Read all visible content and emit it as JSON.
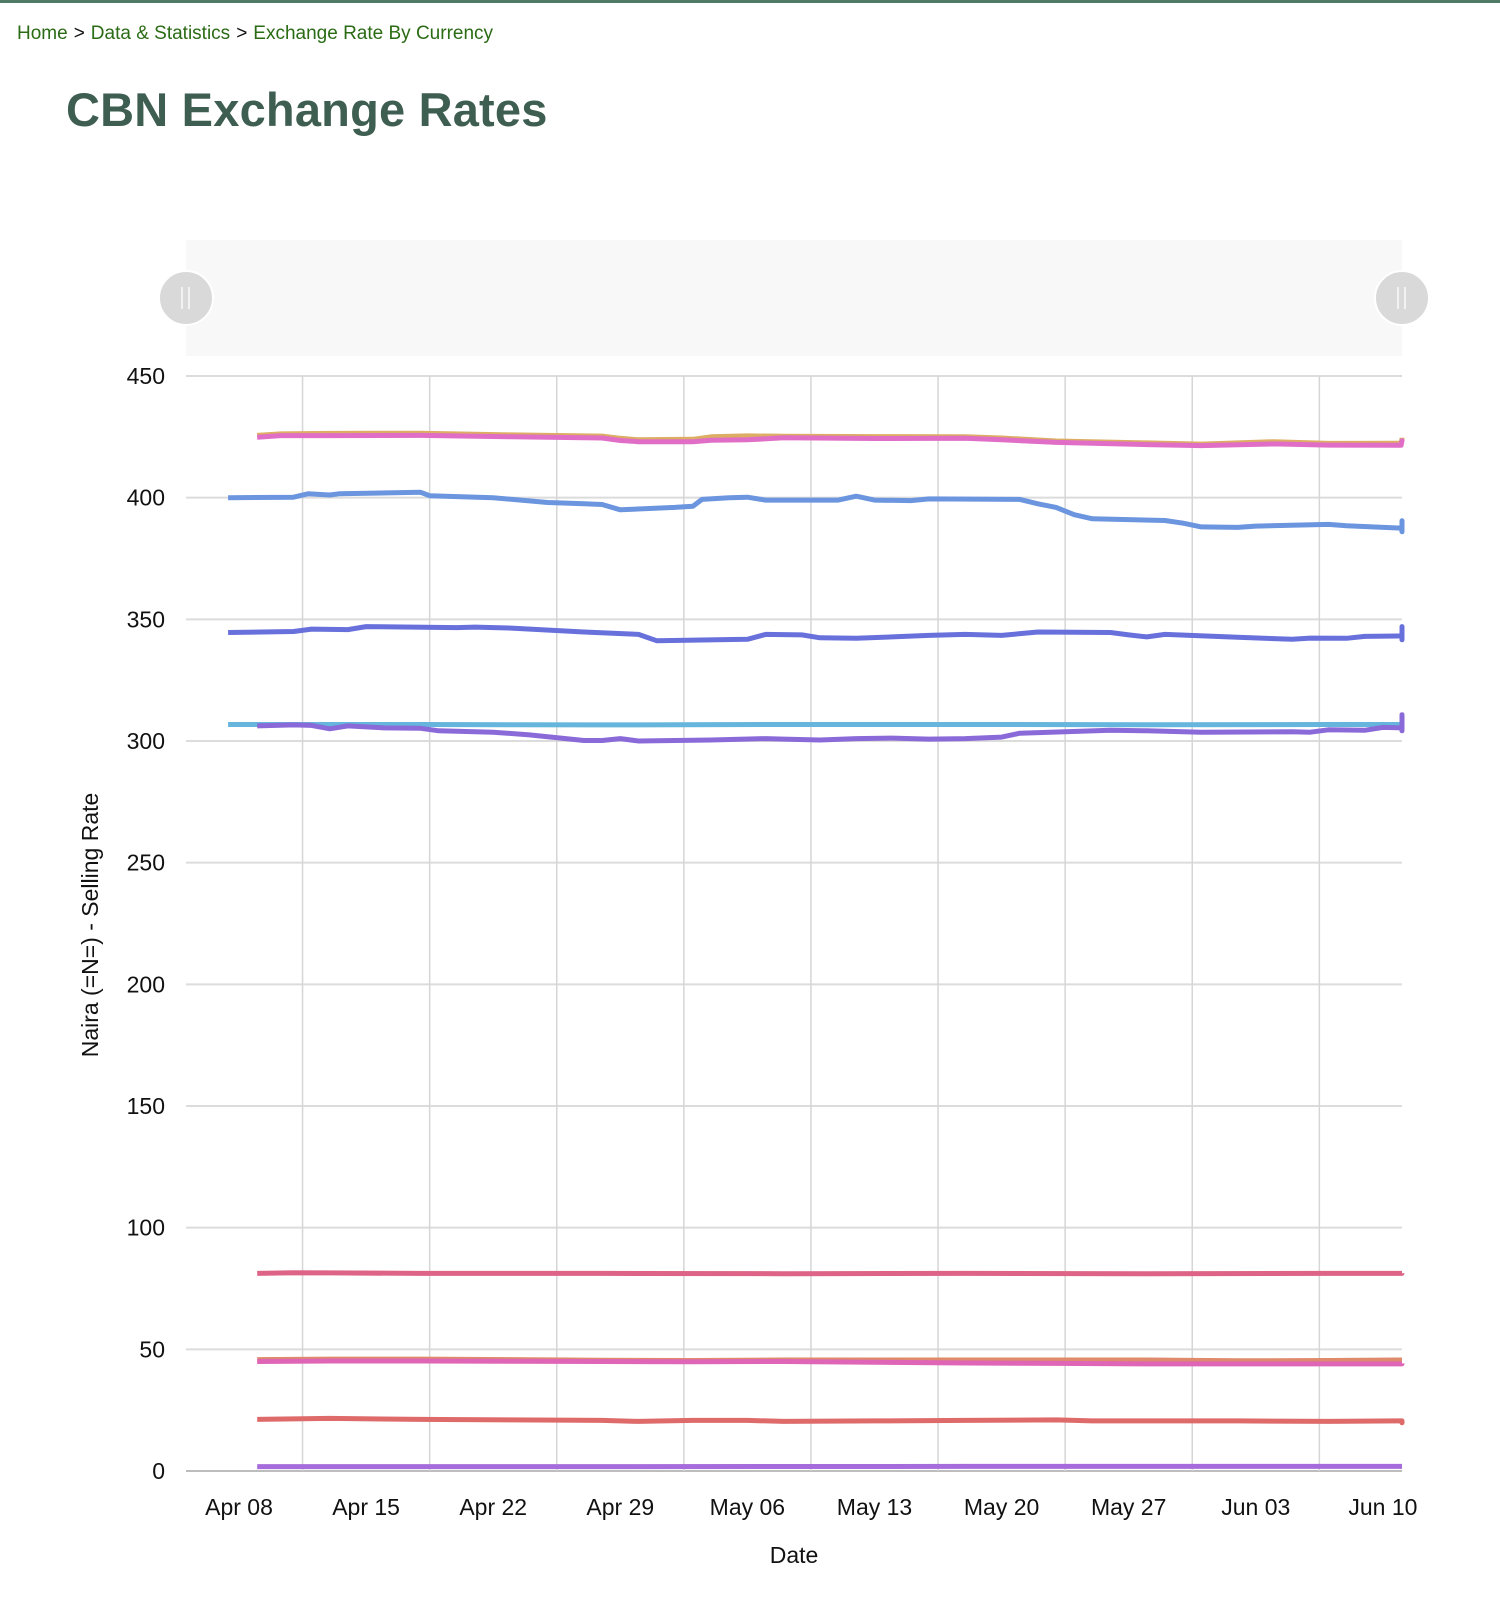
{
  "breadcrumb": {
    "items": [
      "Home",
      "Data & Statistics",
      "Exchange Rate By Currency"
    ],
    "separator": ">"
  },
  "page": {
    "title": "CBN Exchange Rates"
  },
  "range_slider": {
    "left_handle_icon": "pause-bars-icon",
    "right_handle_icon": "pause-bars-icon"
  },
  "chart_data": {
    "type": "line",
    "title": "",
    "xlabel": "Date",
    "ylabel": "Naira (=N=) - Selling Rate",
    "ylim": [
      0,
      450
    ],
    "yticks": [
      0,
      50,
      100,
      150,
      200,
      250,
      300,
      350,
      400,
      450
    ],
    "xtick_labels": [
      "Apr 08",
      "Apr 15",
      "Apr 22",
      "Apr 29",
      "May 06",
      "May 13",
      "May 20",
      "May 27",
      "Jun 03",
      "Jun 10"
    ],
    "x_range_days": [
      0,
      65
    ],
    "grid": true,
    "legend": "none",
    "series": [
      {
        "name": "series-gold",
        "color": "#dcad63",
        "points": [
          [
            1,
            425.6
          ],
          [
            2.3,
            426.2
          ],
          [
            5,
            426.4
          ],
          [
            10,
            426.5
          ],
          [
            15,
            425.8
          ],
          [
            20,
            425.3
          ],
          [
            21,
            424.4
          ],
          [
            22,
            423.8
          ],
          [
            25,
            424.0
          ],
          [
            26,
            425.0
          ],
          [
            28,
            425.4
          ],
          [
            30,
            425.2
          ],
          [
            35,
            425.1
          ],
          [
            40,
            425.0
          ],
          [
            42,
            424.5
          ],
          [
            45,
            423.3
          ],
          [
            50,
            422.5
          ],
          [
            53,
            422.0
          ],
          [
            57,
            423.0
          ],
          [
            60,
            422.3
          ],
          [
            64,
            422.4
          ],
          [
            66,
            424.2
          ],
          [
            68,
            424.4
          ],
          [
            70,
            424.6
          ],
          [
            73,
            424.6
          ]
        ]
      },
      {
        "name": "series-pink",
        "color": "#e06ec6",
        "points": [
          [
            1,
            424.8
          ],
          [
            2.3,
            425.5
          ],
          [
            5,
            425.5
          ],
          [
            10,
            425.6
          ],
          [
            15,
            425.0
          ],
          [
            20,
            424.5
          ],
          [
            21,
            423.5
          ],
          [
            22,
            423.0
          ],
          [
            25,
            423.0
          ],
          [
            26,
            423.6
          ],
          [
            28,
            423.8
          ],
          [
            30,
            424.6
          ],
          [
            35,
            424.3
          ],
          [
            40,
            424.4
          ],
          [
            42,
            423.8
          ],
          [
            45,
            422.7
          ],
          [
            50,
            421.8
          ],
          [
            53,
            421.4
          ],
          [
            57,
            422.1
          ],
          [
            60,
            421.6
          ],
          [
            64,
            421.5
          ],
          [
            66,
            423.4
          ],
          [
            68,
            423.3
          ],
          [
            70,
            423.5
          ],
          [
            73,
            423.6
          ]
        ]
      },
      {
        "name": "series-blue",
        "color": "#6b95de",
        "points": [
          [
            -0.6,
            400.0
          ],
          [
            3,
            400.2
          ],
          [
            3.8,
            401.6
          ],
          [
            5,
            401.1
          ],
          [
            5.5,
            401.6
          ],
          [
            10,
            402.2
          ],
          [
            10.5,
            400.8
          ],
          [
            14,
            400.0
          ],
          [
            17,
            398.0
          ],
          [
            19,
            397.5
          ],
          [
            20,
            397.2
          ],
          [
            21,
            395.0
          ],
          [
            24,
            396.0
          ],
          [
            25,
            396.5
          ],
          [
            25.5,
            399.3
          ],
          [
            27,
            400.0
          ],
          [
            28,
            400.2
          ],
          [
            29,
            399.0
          ],
          [
            33,
            399.0
          ],
          [
            34,
            400.6
          ],
          [
            35,
            399.0
          ],
          [
            37,
            398.8
          ],
          [
            38,
            399.5
          ],
          [
            43,
            399.3
          ],
          [
            44,
            397.5
          ],
          [
            45,
            396.0
          ],
          [
            46,
            393.0
          ],
          [
            47,
            391.3
          ],
          [
            51,
            390.6
          ],
          [
            52,
            389.5
          ],
          [
            53,
            388.0
          ],
          [
            55,
            387.8
          ],
          [
            56,
            388.3
          ],
          [
            60,
            389.0
          ],
          [
            61,
            388.5
          ],
          [
            64,
            387.5
          ],
          [
            65,
            386.0
          ],
          [
            68,
            387.0
          ],
          [
            70,
            387.5
          ],
          [
            72,
            390.0
          ],
          [
            73,
            390.5
          ],
          [
            75,
            389.0
          ],
          [
            76,
            388.5
          ],
          [
            77,
            388.6
          ]
        ]
      },
      {
        "name": "series-indigo",
        "color": "#6870dc",
        "points": [
          [
            -0.6,
            344.6
          ],
          [
            3,
            345.0
          ],
          [
            4,
            346.0
          ],
          [
            6,
            345.8
          ],
          [
            7,
            347.0
          ],
          [
            12,
            346.6
          ],
          [
            13,
            346.8
          ],
          [
            15,
            346.4
          ],
          [
            19,
            344.8
          ],
          [
            22,
            343.8
          ],
          [
            23,
            341.2
          ],
          [
            28,
            341.8
          ],
          [
            29,
            343.8
          ],
          [
            31,
            343.6
          ],
          [
            32,
            342.4
          ],
          [
            34,
            342.2
          ],
          [
            38,
            343.4
          ],
          [
            40,
            343.8
          ],
          [
            42,
            343.4
          ],
          [
            44,
            344.8
          ],
          [
            48,
            344.6
          ],
          [
            49,
            343.6
          ],
          [
            50,
            342.8
          ],
          [
            51,
            343.8
          ],
          [
            55,
            342.6
          ],
          [
            58,
            341.8
          ],
          [
            59,
            342.3
          ],
          [
            61,
            342.2
          ],
          [
            62,
            343.0
          ],
          [
            66,
            343.2
          ],
          [
            68,
            342.4
          ],
          [
            69,
            341.6
          ],
          [
            71,
            342.4
          ],
          [
            74,
            343.6
          ],
          [
            77,
            346.4
          ],
          [
            78,
            347.0
          ],
          [
            80,
            346.8
          ],
          [
            82,
            346.6
          ]
        ]
      },
      {
        "name": "series-cyan",
        "color": "#66b5dc",
        "points": [
          [
            -0.6,
            306.8
          ],
          [
            10,
            306.8
          ],
          [
            20,
            306.6
          ],
          [
            30,
            306.8
          ],
          [
            40,
            306.8
          ],
          [
            50,
            306.7
          ],
          [
            60,
            306.8
          ],
          [
            70,
            306.8
          ],
          [
            80,
            306.8
          ],
          [
            82,
            306.8
          ]
        ]
      },
      {
        "name": "series-violet",
        "color": "#8a6ad8",
        "points": [
          [
            1,
            306.2
          ],
          [
            3,
            306.6
          ],
          [
            4,
            306.4
          ],
          [
            5,
            305.0
          ],
          [
            6,
            306.2
          ],
          [
            8,
            305.4
          ],
          [
            10,
            305.2
          ],
          [
            11,
            304.2
          ],
          [
            14,
            303.6
          ],
          [
            16,
            302.5
          ],
          [
            19,
            300.2
          ],
          [
            20,
            300.2
          ],
          [
            21,
            301.0
          ],
          [
            22,
            300.0
          ],
          [
            26,
            300.4
          ],
          [
            29,
            301.0
          ],
          [
            30,
            300.8
          ],
          [
            32,
            300.4
          ],
          [
            34,
            301.0
          ],
          [
            36,
            301.2
          ],
          [
            38,
            300.8
          ],
          [
            40,
            301.0
          ],
          [
            42,
            301.6
          ],
          [
            43,
            303.2
          ],
          [
            48,
            304.4
          ],
          [
            50,
            304.2
          ],
          [
            53,
            303.6
          ],
          [
            58,
            303.8
          ],
          [
            59,
            303.6
          ],
          [
            60,
            304.6
          ],
          [
            62,
            304.4
          ],
          [
            63,
            305.6
          ],
          [
            66,
            305.4
          ],
          [
            68,
            304.8
          ],
          [
            70,
            304.4
          ],
          [
            71,
            304.2
          ],
          [
            73,
            305.0
          ],
          [
            75,
            306.6
          ],
          [
            77,
            307.4
          ],
          [
            79,
            308.6
          ],
          [
            80,
            309.4
          ],
          [
            81,
            309.0
          ],
          [
            82,
            310.8
          ],
          [
            84,
            310.6
          ],
          [
            86,
            309.6
          ],
          [
            88,
            309.2
          ]
        ]
      },
      {
        "name": "series-rose",
        "color": "#dd6487",
        "points": [
          [
            1,
            81.2
          ],
          [
            3,
            81.5
          ],
          [
            5,
            81.4
          ],
          [
            10,
            81.2
          ],
          [
            20,
            81.2
          ],
          [
            30,
            81.1
          ],
          [
            40,
            81.2
          ],
          [
            50,
            81.1
          ],
          [
            60,
            81.2
          ],
          [
            70,
            81.2
          ],
          [
            73,
            81.3
          ]
        ]
      },
      {
        "name": "series-orange",
        "color": "#de8a6b",
        "points": [
          [
            1,
            45.8
          ],
          [
            5,
            46.0
          ],
          [
            10,
            46.0
          ],
          [
            15,
            45.8
          ],
          [
            20,
            45.5
          ],
          [
            25,
            45.4
          ],
          [
            30,
            45.6
          ],
          [
            40,
            45.6
          ],
          [
            50,
            45.6
          ],
          [
            55,
            45.3
          ],
          [
            60,
            45.4
          ],
          [
            65,
            45.6
          ],
          [
            70,
            45.6
          ],
          [
            73,
            45.6
          ]
        ]
      },
      {
        "name": "series-magenta",
        "color": "#df66b7",
        "points": [
          [
            1,
            45.0
          ],
          [
            5,
            45.2
          ],
          [
            10,
            45.2
          ],
          [
            15,
            45.1
          ],
          [
            20,
            45.0
          ],
          [
            25,
            44.9
          ],
          [
            30,
            45.0
          ],
          [
            35,
            44.7
          ],
          [
            40,
            44.4
          ],
          [
            45,
            44.2
          ],
          [
            50,
            44.0
          ],
          [
            55,
            44.0
          ],
          [
            60,
            44.0
          ],
          [
            65,
            44.0
          ],
          [
            70,
            44.1
          ],
          [
            73,
            44.2
          ]
        ]
      },
      {
        "name": "series-red",
        "color": "#de6a6a",
        "points": [
          [
            1,
            21.2
          ],
          [
            5,
            21.6
          ],
          [
            10,
            21.2
          ],
          [
            15,
            21.0
          ],
          [
            20,
            20.8
          ],
          [
            22,
            20.4
          ],
          [
            25,
            20.8
          ],
          [
            28,
            20.8
          ],
          [
            30,
            20.4
          ],
          [
            35,
            20.6
          ],
          [
            40,
            20.8
          ],
          [
            45,
            21.0
          ],
          [
            47,
            20.6
          ],
          [
            50,
            20.6
          ],
          [
            55,
            20.6
          ],
          [
            60,
            20.4
          ],
          [
            65,
            20.6
          ],
          [
            70,
            20.2
          ],
          [
            72,
            19.8
          ],
          [
            73,
            20.0
          ]
        ]
      },
      {
        "name": "series-purple",
        "color": "#a76cdc",
        "points": [
          [
            1,
            1.8
          ],
          [
            20,
            1.8
          ],
          [
            40,
            1.9
          ],
          [
            60,
            1.9
          ],
          [
            73,
            1.9
          ]
        ]
      }
    ]
  }
}
